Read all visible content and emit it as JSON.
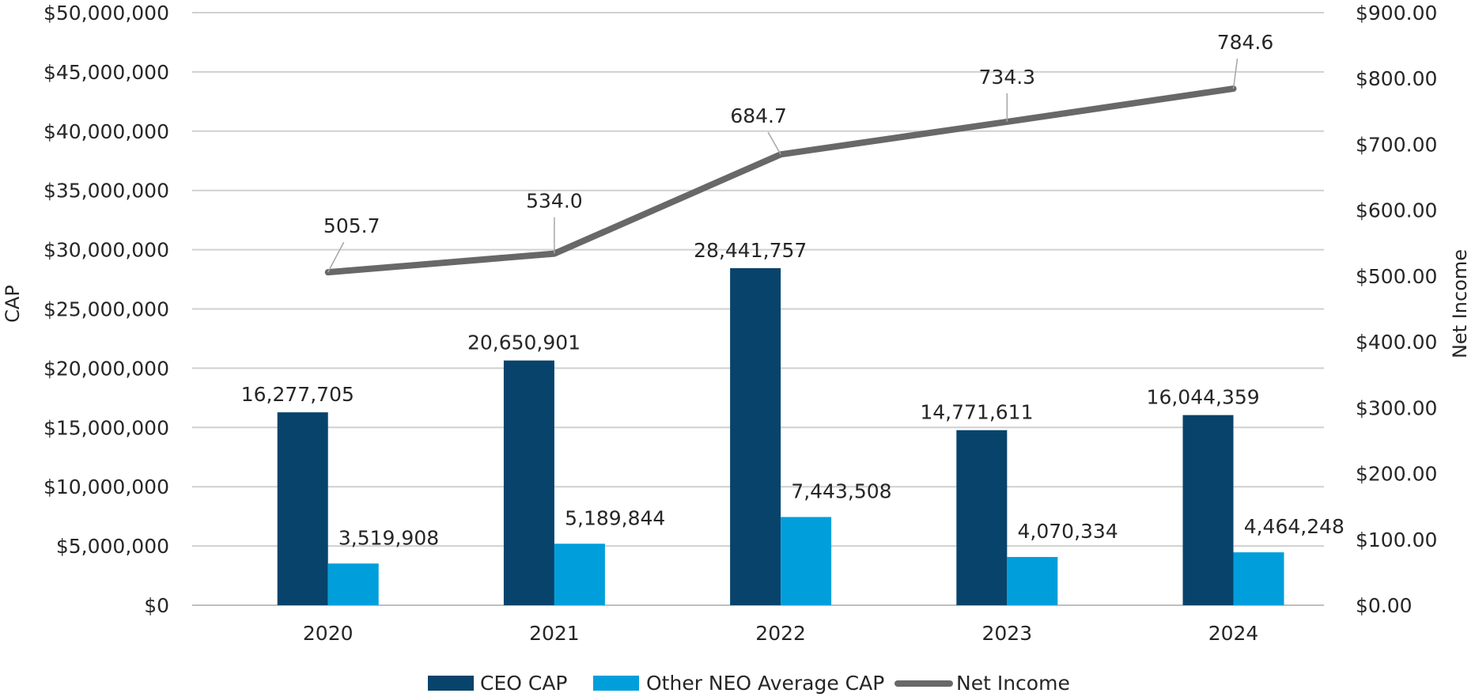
{
  "chart_data": {
    "type": "bar",
    "categories": [
      "2020",
      "2021",
      "2022",
      "2023",
      "2024"
    ],
    "series": [
      {
        "name": "CEO CAP",
        "kind": "bar",
        "axis": "left",
        "color": "#08436b",
        "values": [
          16277705,
          20650901,
          28441757,
          14771611,
          16044359
        ],
        "labels": [
          "16,277,705",
          "20,650,901",
          "28,441,757",
          "14,771,611",
          "16,044,359"
        ]
      },
      {
        "name": "Other NEO Average CAP",
        "kind": "bar",
        "axis": "left",
        "color": "#009fdb",
        "values": [
          3519908,
          5189844,
          7443508,
          4070334,
          4464248
        ],
        "labels": [
          "3,519,908",
          "5,189,844",
          "7,443,508",
          "4,070,334",
          "4,464,248"
        ]
      },
      {
        "name": "Net Income",
        "kind": "line",
        "axis": "right",
        "color": "#686868",
        "values": [
          505.7,
          534.0,
          684.7,
          734.3,
          784.6
        ],
        "labels": [
          "505.7",
          "534.0",
          "684.7",
          "734.3",
          "784.6"
        ]
      }
    ],
    "ylabel": "CAP",
    "y2label": "Net Income",
    "ylim": [
      0,
      50000000
    ],
    "y2lim": [
      0,
      900
    ],
    "yticks": [
      0,
      5000000,
      10000000,
      15000000,
      20000000,
      25000000,
      30000000,
      35000000,
      40000000,
      45000000,
      50000000
    ],
    "ytick_labels": [
      "$0",
      "$5,000,000",
      "$10,000,000",
      "$15,000,000",
      "$20,000,000",
      "$25,000,000",
      "$30,000,000",
      "$35,000,000",
      "$40,000,000",
      "$45,000,000",
      "$50,000,000"
    ],
    "y2ticks": [
      0,
      100,
      200,
      300,
      400,
      500,
      600,
      700,
      800,
      900
    ],
    "y2tick_labels": [
      "$0.00",
      "$100.00",
      "$200.00",
      "$300.00",
      "$400.00",
      "$500.00",
      "$600.00",
      "$700.00",
      "$800.00",
      "$900.00"
    ],
    "grid": true,
    "legend": "bottom"
  }
}
